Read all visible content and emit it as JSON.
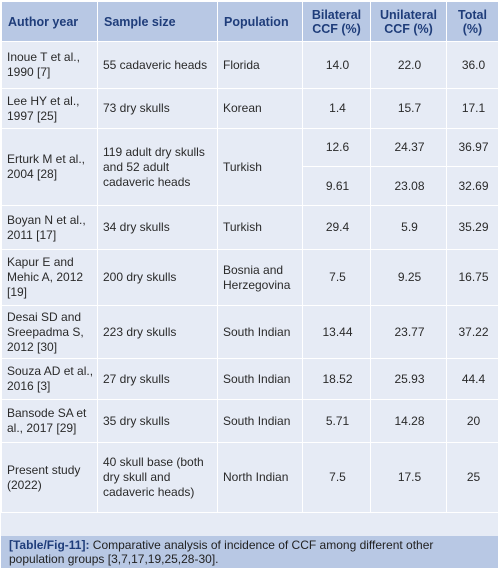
{
  "table": {
    "headers": [
      "Author year",
      "Sample size",
      "Population",
      "Bilateral CCF (%)",
      "Unilateral CCF (%)",
      "Total (%)"
    ],
    "rows": [
      {
        "author": "Inoue T et al., 1990 [7]",
        "sample": "55 cadaveric heads",
        "population": "Florida",
        "bilateral": "14.0",
        "unilateral": "22.0",
        "total": "36.0"
      },
      {
        "author": "Lee HY et al., 1997 [25]",
        "sample": "73 dry skulls",
        "population": "Korean",
        "bilateral": "1.4",
        "unilateral": "15.7",
        "total": "17.1"
      },
      {
        "author": "Erturk M et al., 2004 [28]",
        "sample": "119 adult dry skulls and 52 adult cadaveric heads",
        "population": "Turkish",
        "bilateral": "12.6",
        "unilateral": "24.37",
        "total": "36.97",
        "bilateral2": "9.61",
        "unilateral2": "23.08",
        "total2": "32.69"
      },
      {
        "author": "Boyan N et al., 2011 [17]",
        "sample": "34 dry skulls",
        "population": "Turkish",
        "bilateral": "29.4",
        "unilateral": "5.9",
        "total": "35.29"
      },
      {
        "author": "Kapur E and Mehic A, 2012 [19]",
        "sample": "200 dry skulls",
        "population": "Bosnia and Herzegovina",
        "bilateral": "7.5",
        "unilateral": "9.25",
        "total": "16.75"
      },
      {
        "author": "Desai SD and Sreepadma S, 2012 [30]",
        "sample": "223 dry skulls",
        "population": "South Indian",
        "bilateral": "13.44",
        "unilateral": "23.77",
        "total": "37.22"
      },
      {
        "author": "Souza AD et al., 2016 [3]",
        "sample": "27 dry skulls",
        "population": "South Indian",
        "bilateral": "18.52",
        "unilateral": "25.93",
        "total": "44.4"
      },
      {
        "author": "Bansode SA et al., 2017 [29]",
        "sample": "35 dry skulls",
        "population": "South Indian",
        "bilateral": "5.71",
        "unilateral": "14.28",
        "total": "20"
      },
      {
        "author": "Present study (2022)",
        "sample": "40 skull base (both dry skull and cadaveric heads)",
        "population": "North Indian",
        "bilateral": "7.5",
        "unilateral": "17.5",
        "total": "25"
      }
    ]
  },
  "caption": {
    "label": "[Table/Fig-11]:",
    "text": " Comparative analysis of incidence of CCF among different other population groups [3,7,17,19,25,28-30]."
  },
  "colors": {
    "header_bg": "#b8c8e4",
    "row_bg": "#e6ebf5",
    "header_text": "#1f3d7a"
  }
}
